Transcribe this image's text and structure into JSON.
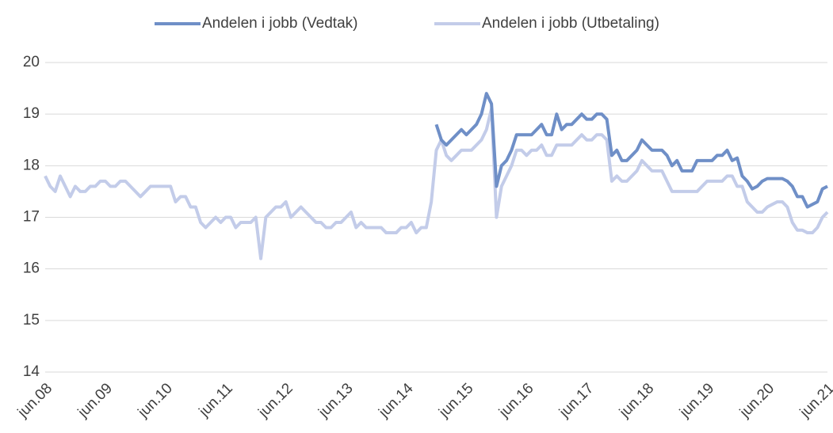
{
  "chart_data": {
    "type": "line",
    "categories": [
      "jun.08",
      null,
      null,
      null,
      null,
      null,
      null,
      null,
      null,
      null,
      null,
      null,
      "jun.09",
      null,
      null,
      null,
      null,
      null,
      null,
      null,
      null,
      null,
      null,
      null,
      "jun.10",
      null,
      null,
      null,
      null,
      null,
      null,
      null,
      null,
      null,
      null,
      null,
      "jun.11",
      null,
      null,
      null,
      null,
      null,
      null,
      null,
      null,
      null,
      null,
      null,
      "jun.12",
      null,
      null,
      null,
      null,
      null,
      null,
      null,
      null,
      null,
      null,
      null,
      "jun.13",
      null,
      null,
      null,
      null,
      null,
      null,
      null,
      null,
      null,
      null,
      null,
      "jun.14",
      null,
      null,
      null,
      null,
      null,
      null,
      null,
      null,
      null,
      null,
      null,
      "jun.15",
      null,
      null,
      null,
      null,
      null,
      null,
      null,
      null,
      null,
      null,
      null,
      "jun.16",
      null,
      null,
      null,
      null,
      null,
      null,
      null,
      null,
      null,
      null,
      null,
      "jun.17",
      null,
      null,
      null,
      null,
      null,
      null,
      null,
      null,
      null,
      null,
      null,
      "jun.18",
      null,
      null,
      null,
      null,
      null,
      null,
      null,
      null,
      null,
      null,
      null,
      "jun.19",
      null,
      null,
      null,
      null,
      null,
      null,
      null,
      null,
      null,
      null,
      null,
      "jun.20",
      null,
      null,
      null,
      null,
      null,
      null,
      null,
      null,
      null,
      null,
      null,
      "jun.21"
    ],
    "series": [
      {
        "name": "Andelen i jobb (Vedtak)",
        "color": "#6f8fc7",
        "values": [
          null,
          null,
          null,
          null,
          null,
          null,
          null,
          null,
          null,
          null,
          null,
          null,
          null,
          null,
          null,
          null,
          null,
          null,
          null,
          null,
          null,
          null,
          null,
          null,
          null,
          null,
          null,
          null,
          null,
          null,
          null,
          null,
          null,
          null,
          null,
          null,
          null,
          null,
          null,
          null,
          null,
          null,
          null,
          null,
          null,
          null,
          null,
          null,
          null,
          null,
          null,
          null,
          null,
          null,
          null,
          null,
          null,
          null,
          null,
          null,
          null,
          null,
          null,
          null,
          null,
          null,
          null,
          null,
          null,
          null,
          null,
          null,
          null,
          null,
          null,
          null,
          null,
          null,
          18.8,
          18.5,
          18.4,
          18.5,
          18.6,
          18.7,
          18.6,
          18.7,
          18.8,
          19.0,
          19.4,
          19.2,
          17.6,
          18.0,
          18.1,
          18.3,
          18.6,
          18.6,
          18.6,
          18.6,
          18.7,
          18.8,
          18.6,
          18.6,
          19.0,
          18.7,
          18.8,
          18.8,
          18.9,
          19.0,
          18.9,
          18.9,
          19.0,
          19.0,
          18.9,
          18.2,
          18.3,
          18.1,
          18.1,
          18.2,
          18.3,
          18.5,
          18.4,
          18.3,
          18.3,
          18.3,
          18.2,
          18.0,
          18.1,
          17.9,
          17.9,
          17.9,
          18.1,
          18.1,
          18.1,
          18.1,
          18.2,
          18.2,
          18.3,
          18.1,
          18.15,
          17.8,
          17.7,
          17.55,
          17.6,
          17.7,
          17.75,
          17.75,
          17.75,
          17.75,
          17.7,
          17.6,
          17.4,
          17.4,
          17.2,
          17.25,
          17.3,
          17.55,
          17.6
        ]
      },
      {
        "name": "Andelen i jobb (Utbetaling)",
        "color": "#c3cce9",
        "values": [
          17.8,
          17.6,
          17.5,
          17.8,
          17.6,
          17.4,
          17.6,
          17.5,
          17.5,
          17.6,
          17.6,
          17.7,
          17.7,
          17.6,
          17.6,
          17.7,
          17.7,
          17.6,
          17.5,
          17.4,
          17.5,
          17.6,
          17.6,
          17.6,
          17.6,
          17.6,
          17.3,
          17.4,
          17.4,
          17.2,
          17.2,
          16.9,
          16.8,
          16.9,
          17.0,
          16.9,
          17.0,
          17.0,
          16.8,
          16.9,
          16.9,
          16.9,
          17.0,
          16.2,
          17.0,
          17.1,
          17.2,
          17.2,
          17.3,
          17.0,
          17.1,
          17.2,
          17.1,
          17.0,
          16.9,
          16.9,
          16.8,
          16.8,
          16.9,
          16.9,
          17.0,
          17.1,
          16.8,
          16.9,
          16.8,
          16.8,
          16.8,
          16.8,
          16.7,
          16.7,
          16.7,
          16.8,
          16.8,
          16.9,
          16.7,
          16.8,
          16.8,
          17.3,
          18.3,
          18.5,
          18.2,
          18.1,
          18.2,
          18.3,
          18.3,
          18.3,
          18.4,
          18.5,
          18.7,
          19.1,
          17.0,
          17.6,
          17.8,
          18.0,
          18.3,
          18.3,
          18.2,
          18.3,
          18.3,
          18.4,
          18.2,
          18.2,
          18.4,
          18.4,
          18.4,
          18.4,
          18.5,
          18.6,
          18.5,
          18.5,
          18.6,
          18.6,
          18.5,
          17.7,
          17.8,
          17.7,
          17.7,
          17.8,
          17.9,
          18.1,
          18.0,
          17.9,
          17.9,
          17.9,
          17.7,
          17.5,
          17.5,
          17.5,
          17.5,
          17.5,
          17.5,
          17.6,
          17.7,
          17.7,
          17.7,
          17.7,
          17.8,
          17.8,
          17.6,
          17.6,
          17.3,
          17.2,
          17.1,
          17.1,
          17.2,
          17.25,
          17.3,
          17.3,
          17.2,
          16.9,
          16.75,
          16.75,
          16.7,
          16.7,
          16.8,
          17.0,
          17.1
        ]
      }
    ],
    "ylim": [
      14,
      20
    ],
    "yticks": [
      14,
      15,
      16,
      17,
      18,
      19,
      20
    ],
    "grid": true,
    "legend": "top"
  }
}
